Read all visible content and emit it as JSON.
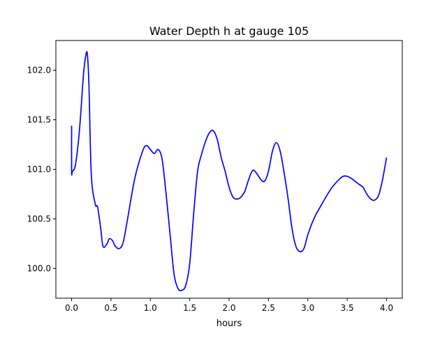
{
  "chart_data": {
    "type": "line",
    "title": "Water Depth h at gauge 105",
    "xlabel": "hours",
    "ylabel": "",
    "xlim": [
      -0.2,
      4.2
    ],
    "ylim": [
      99.7,
      102.3
    ],
    "xticks": [
      0.0,
      0.5,
      1.0,
      1.5,
      2.0,
      2.5,
      3.0,
      3.5,
      4.0
    ],
    "xtick_labels": [
      "0.0",
      "0.5",
      "1.0",
      "1.5",
      "2.0",
      "2.5",
      "3.0",
      "3.5",
      "4.0"
    ],
    "yticks": [
      100.0,
      100.5,
      101.0,
      101.5,
      102.0
    ],
    "ytick_labels": [
      "100.0",
      "100.5",
      "101.0",
      "101.5",
      "102.0"
    ],
    "grid": false,
    "series": [
      {
        "color": "#0000ff",
        "x": [
          0.0,
          0.0,
          0.01,
          0.05,
          0.1,
          0.15,
          0.18,
          0.2,
          0.22,
          0.25,
          0.3,
          0.33,
          0.37,
          0.4,
          0.45,
          0.48,
          0.52,
          0.55,
          0.6,
          0.65,
          0.7,
          0.8,
          0.9,
          0.95,
          1.0,
          1.05,
          1.1,
          1.15,
          1.2,
          1.25,
          1.3,
          1.35,
          1.4,
          1.45,
          1.5,
          1.55,
          1.6,
          1.65,
          1.7,
          1.75,
          1.8,
          1.85,
          1.9,
          1.95,
          2.0,
          2.05,
          2.1,
          2.15,
          2.2,
          2.25,
          2.3,
          2.35,
          2.4,
          2.45,
          2.5,
          2.55,
          2.6,
          2.65,
          2.7,
          2.75,
          2.8,
          2.85,
          2.9,
          2.95,
          3.0,
          3.05,
          3.1,
          3.15,
          3.2,
          3.3,
          3.4,
          3.45,
          3.5,
          3.55,
          3.6,
          3.65,
          3.7,
          3.75,
          3.8,
          3.85,
          3.9,
          3.95,
          4.0
        ],
        "y": [
          101.44,
          100.98,
          100.98,
          101.05,
          101.4,
          101.95,
          102.15,
          102.16,
          101.85,
          100.95,
          100.65,
          100.62,
          100.4,
          100.22,
          100.25,
          100.3,
          100.28,
          100.23,
          100.2,
          100.25,
          100.45,
          100.9,
          101.18,
          101.24,
          101.2,
          101.16,
          101.2,
          101.1,
          100.75,
          100.35,
          99.95,
          99.8,
          99.78,
          99.83,
          100.05,
          100.55,
          100.98,
          101.15,
          101.28,
          101.37,
          101.39,
          101.3,
          101.12,
          100.98,
          100.82,
          100.72,
          100.7,
          100.72,
          100.78,
          100.9,
          100.99,
          100.96,
          100.9,
          100.88,
          100.98,
          101.18,
          101.27,
          101.18,
          100.96,
          100.7,
          100.4,
          100.22,
          100.17,
          100.2,
          100.34,
          100.45,
          100.54,
          100.61,
          100.68,
          100.81,
          100.9,
          100.93,
          100.93,
          100.91,
          100.88,
          100.85,
          100.82,
          100.75,
          100.7,
          100.69,
          100.74,
          100.9,
          101.12
        ]
      }
    ]
  }
}
